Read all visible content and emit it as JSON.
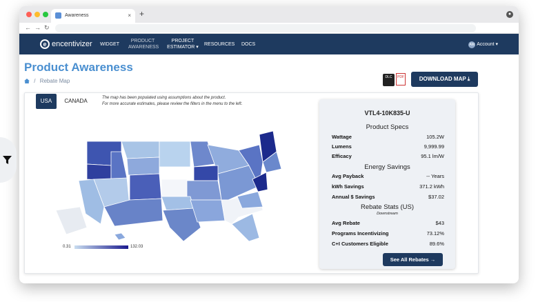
{
  "browser": {
    "tab_title": "Awareness",
    "tab_close": "×",
    "new_tab": "+",
    "back": "←",
    "forward": "→",
    "reload": "↻"
  },
  "nav": {
    "logo_text": "encentivizer",
    "items": [
      {
        "label": "WIDGET"
      },
      {
        "label": "PRODUCT\nAWARENESS"
      },
      {
        "label": "PROJECT\nESTIMATOR ▾"
      },
      {
        "label": "RESOURCES"
      },
      {
        "label": "DOCS"
      }
    ],
    "account_initials": "AM",
    "account_label": "Account ▾"
  },
  "page": {
    "title": "Product Awareness",
    "breadcrumb_sep": "/",
    "breadcrumb_current": "Rebate Map",
    "dlc_badge": "DLC",
    "pdf_badge": "PDF",
    "download_button": "DOWNLOAD MAP ⤓"
  },
  "map": {
    "tabs": [
      "USA",
      "CANADA"
    ],
    "active_tab": "USA",
    "note_line1": "The map has been populated using assumptions about the product.",
    "note_line2": "For more accurate estimates, please review the filters in the menu to the left.",
    "legend_min": "0.31",
    "legend_max": "132.03",
    "color_low": "#c9ddf0",
    "color_high": "#1a1a8e"
  },
  "product": {
    "sku": "VTL4-10K835-U",
    "specs_title": "Product Specs",
    "specs": [
      {
        "label": "Wattage",
        "value": "105.2W"
      },
      {
        "label": "Lumens",
        "value": "9,999.99"
      },
      {
        "label": "Efficacy",
        "value": "95.1 lm/W"
      }
    ],
    "energy_title": "Energy Savings",
    "energy": [
      {
        "label": "Avg Payback",
        "value": "-- Years"
      },
      {
        "label": "kWh Savings",
        "value": "371.2 kWh"
      },
      {
        "label": "Annual $ Savings",
        "value": "$37.02"
      }
    ],
    "rebate_title": "Rebate Stats (US)",
    "rebate_subtitle": "Downstream",
    "rebate": [
      {
        "label": "Avg Rebate",
        "value": "$43"
      },
      {
        "label": "Programs Incentivizing",
        "value": "73.12%"
      },
      {
        "label": "C+I Customers Eligible",
        "value": "89.6%"
      }
    ],
    "see_all_button": "See All Rebates →"
  }
}
